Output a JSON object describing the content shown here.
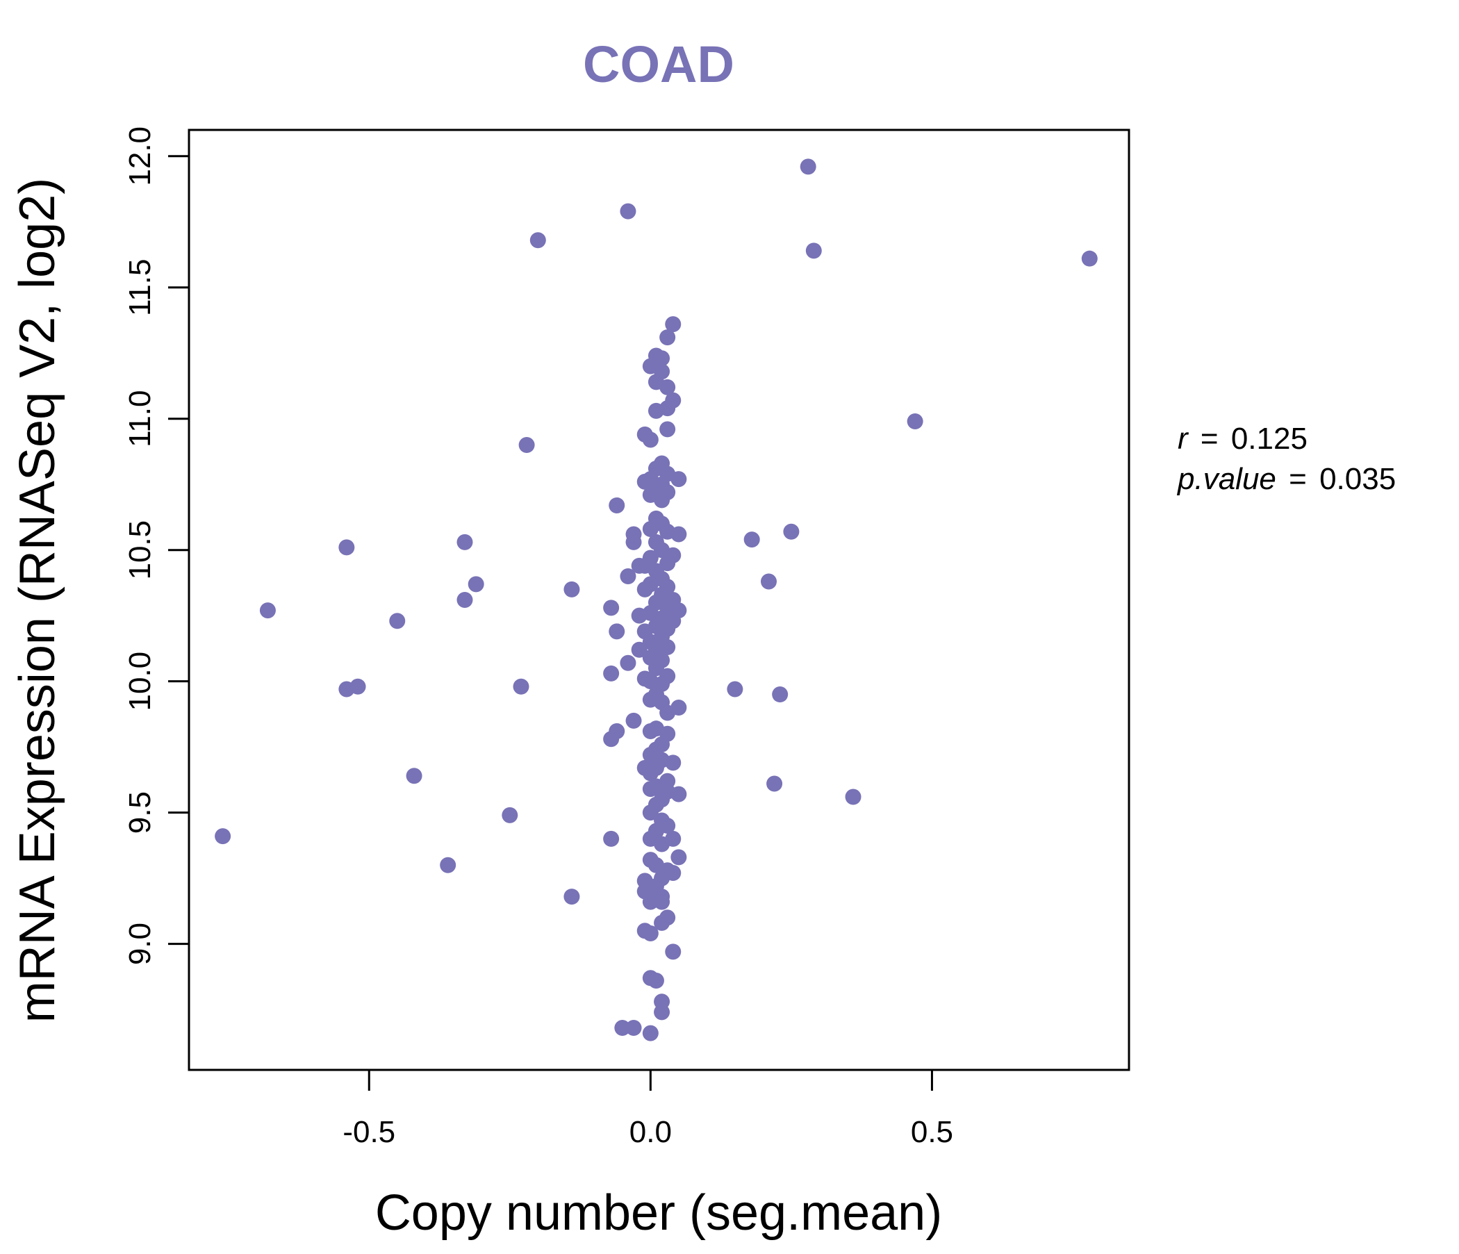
{
  "colors": {
    "point": "#7872b6",
    "title": "#7872b6",
    "axis": "#000000",
    "background": "#ffffff"
  },
  "chart_data": {
    "type": "scatter",
    "title": "COAD",
    "xlabel": "Copy number (seg.mean)",
    "ylabel": "mRNA Expression (RNASeq V2, log2)",
    "xlim": [
      -0.82,
      0.85
    ],
    "ylim": [
      8.52,
      12.1
    ],
    "x_ticks": [
      -0.5,
      0.0,
      0.5
    ],
    "x_tick_labels": [
      "-0.5",
      "0.0",
      "0.5"
    ],
    "y_ticks": [
      9.0,
      9.5,
      10.0,
      10.5,
      11.0,
      11.5,
      12.0
    ],
    "y_tick_labels": [
      "9.0",
      "9.5",
      "10.0",
      "10.5",
      "11.0",
      "11.5",
      "12.0"
    ],
    "grid": false,
    "stats": {
      "r_label": "r",
      "r_equals": "=",
      "r_value": "0.125",
      "p_label": "p.value",
      "p_equals": "=",
      "p_value": "0.035"
    },
    "points": [
      [
        0.28,
        11.96
      ],
      [
        -0.04,
        11.79
      ],
      [
        -0.2,
        11.68
      ],
      [
        0.29,
        11.64
      ],
      [
        0.78,
        11.61
      ],
      [
        0.04,
        11.36
      ],
      [
        0.03,
        11.31
      ],
      [
        0.02,
        11.23
      ],
      [
        0.01,
        11.24
      ],
      [
        0.0,
        11.2
      ],
      [
        0.02,
        11.18
      ],
      [
        0.01,
        11.14
      ],
      [
        0.03,
        11.12
      ],
      [
        0.04,
        11.07
      ],
      [
        0.03,
        11.04
      ],
      [
        0.01,
        11.03
      ],
      [
        0.47,
        10.99
      ],
      [
        0.03,
        10.96
      ],
      [
        -0.01,
        10.94
      ],
      [
        0.0,
        10.92
      ],
      [
        -0.22,
        10.9
      ],
      [
        0.02,
        10.83
      ],
      [
        0.01,
        10.81
      ],
      [
        0.03,
        10.79
      ],
      [
        0.0,
        10.77
      ],
      [
        0.05,
        10.77
      ],
      [
        -0.01,
        10.76
      ],
      [
        0.02,
        10.75
      ],
      [
        0.01,
        10.73
      ],
      [
        0.03,
        10.72
      ],
      [
        0.0,
        10.71
      ],
      [
        0.02,
        10.69
      ],
      [
        -0.06,
        10.67
      ],
      [
        0.01,
        10.62
      ],
      [
        0.02,
        10.6
      ],
      [
        0.0,
        10.58
      ],
      [
        0.03,
        10.57
      ],
      [
        0.05,
        10.56
      ],
      [
        -0.03,
        10.56
      ],
      [
        0.25,
        10.57
      ],
      [
        0.18,
        10.54
      ],
      [
        -0.03,
        10.53
      ],
      [
        0.01,
        10.53
      ],
      [
        -0.54,
        10.51
      ],
      [
        -0.33,
        10.53
      ],
      [
        0.02,
        10.5
      ],
      [
        0.04,
        10.48
      ],
      [
        0.0,
        10.47
      ],
      [
        0.03,
        10.45
      ],
      [
        -0.02,
        10.44
      ],
      [
        -0.01,
        10.44
      ],
      [
        0.01,
        10.42
      ],
      [
        -0.04,
        10.4
      ],
      [
        0.02,
        10.39
      ],
      [
        0.21,
        10.38
      ],
      [
        -0.31,
        10.37
      ],
      [
        0.0,
        10.37
      ],
      [
        0.03,
        10.36
      ],
      [
        -0.01,
        10.35
      ],
      [
        -0.14,
        10.35
      ],
      [
        0.02,
        10.33
      ],
      [
        0.04,
        10.31
      ],
      [
        0.01,
        10.3
      ],
      [
        -0.33,
        10.31
      ],
      [
        0.03,
        10.28
      ],
      [
        -0.07,
        10.28
      ],
      [
        0.05,
        10.27
      ],
      [
        -0.68,
        10.27
      ],
      [
        0.0,
        10.26
      ],
      [
        -0.02,
        10.25
      ],
      [
        0.02,
        10.24
      ],
      [
        0.04,
        10.23
      ],
      [
        -0.45,
        10.23
      ],
      [
        0.01,
        10.21
      ],
      [
        0.03,
        10.2
      ],
      [
        -0.01,
        10.19
      ],
      [
        -0.06,
        10.19
      ],
      [
        0.02,
        10.17
      ],
      [
        0.0,
        10.15
      ],
      [
        0.03,
        10.13
      ],
      [
        0.01,
        10.12
      ],
      [
        -0.02,
        10.12
      ],
      [
        0.0,
        10.09
      ],
      [
        0.02,
        10.08
      ],
      [
        -0.04,
        10.07
      ],
      [
        0.01,
        10.05
      ],
      [
        -0.07,
        10.03
      ],
      [
        0.03,
        10.02
      ],
      [
        -0.01,
        10.01
      ],
      [
        0.0,
        10.0
      ],
      [
        0.02,
        9.99
      ],
      [
        -0.23,
        9.98
      ],
      [
        -0.52,
        9.98
      ],
      [
        -0.54,
        9.97
      ],
      [
        0.15,
        9.97
      ],
      [
        0.23,
        9.95
      ],
      [
        0.01,
        9.95
      ],
      [
        0.0,
        9.93
      ],
      [
        0.02,
        9.92
      ],
      [
        0.05,
        9.9
      ],
      [
        0.03,
        9.88
      ],
      [
        -0.03,
        9.85
      ],
      [
        0.01,
        9.82
      ],
      [
        0.0,
        9.81
      ],
      [
        -0.06,
        9.81
      ],
      [
        0.03,
        9.8
      ],
      [
        -0.07,
        9.78
      ],
      [
        0.02,
        9.76
      ],
      [
        0.01,
        9.74
      ],
      [
        0.0,
        9.72
      ],
      [
        0.02,
        9.7
      ],
      [
        0.04,
        9.69
      ],
      [
        0.01,
        9.67
      ],
      [
        -0.01,
        9.67
      ],
      [
        0.0,
        9.65
      ],
      [
        -0.42,
        9.64
      ],
      [
        0.03,
        9.62
      ],
      [
        0.22,
        9.61
      ],
      [
        0.01,
        9.6
      ],
      [
        0.0,
        9.59
      ],
      [
        0.03,
        9.58
      ],
      [
        0.05,
        9.57
      ],
      [
        0.36,
        9.56
      ],
      [
        0.02,
        9.55
      ],
      [
        0.01,
        9.53
      ],
      [
        0.0,
        9.5
      ],
      [
        -0.25,
        9.49
      ],
      [
        0.02,
        9.47
      ],
      [
        0.03,
        9.45
      ],
      [
        0.01,
        9.43
      ],
      [
        -0.07,
        9.4
      ],
      [
        -0.76,
        9.41
      ],
      [
        0.04,
        9.4
      ],
      [
        0.0,
        9.4
      ],
      [
        0.02,
        9.38
      ],
      [
        0.05,
        9.33
      ],
      [
        -0.36,
        9.3
      ],
      [
        0.0,
        9.32
      ],
      [
        0.01,
        9.3
      ],
      [
        0.03,
        9.28
      ],
      [
        0.04,
        9.27
      ],
      [
        0.02,
        9.25
      ],
      [
        -0.01,
        9.24
      ],
      [
        0.01,
        9.22
      ],
      [
        0.0,
        9.21
      ],
      [
        -0.01,
        9.2
      ],
      [
        0.02,
        9.18
      ],
      [
        -0.14,
        9.18
      ],
      [
        0.0,
        9.16
      ],
      [
        0.02,
        9.16
      ],
      [
        0.03,
        9.1
      ],
      [
        0.02,
        9.08
      ],
      [
        -0.01,
        9.05
      ],
      [
        0.0,
        9.04
      ],
      [
        0.04,
        8.97
      ],
      [
        0.0,
        8.87
      ],
      [
        0.01,
        8.86
      ],
      [
        0.02,
        8.78
      ],
      [
        0.02,
        8.74
      ],
      [
        -0.05,
        8.68
      ],
      [
        -0.03,
        8.68
      ],
      [
        0.0,
        8.66
      ]
    ]
  }
}
